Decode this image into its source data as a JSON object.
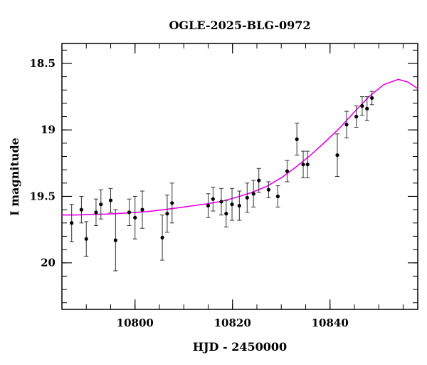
{
  "chart_data": {
    "type": "scatter",
    "title": "OGLE-2025-BLG-0972",
    "xlabel": "HJD - 2450000",
    "ylabel": "I magnitude",
    "xlim": [
      10785,
      10858
    ],
    "ylim": [
      20.35,
      18.35
    ],
    "y_axis_inverted": true,
    "x_ticks": [
      10800,
      10820,
      10840
    ],
    "x_tick_labels": [
      "10800",
      "10820",
      "10840"
    ],
    "y_ticks": [
      18.5,
      19,
      19.5,
      20
    ],
    "y_tick_labels": [
      "18.5",
      "19",
      "19.5",
      "20"
    ],
    "grid": false,
    "point_color": "#000000",
    "model_color": "#e600e6",
    "points": [
      {
        "x": 10787.0,
        "y": 19.7,
        "err": 0.14
      },
      {
        "x": 10789.0,
        "y": 19.6,
        "err": 0.1
      },
      {
        "x": 10790.0,
        "y": 19.82,
        "err": 0.13
      },
      {
        "x": 10792.0,
        "y": 19.62,
        "err": 0.1
      },
      {
        "x": 10793.0,
        "y": 19.56,
        "err": 0.11
      },
      {
        "x": 10795.0,
        "y": 19.53,
        "err": 0.09
      },
      {
        "x": 10796.0,
        "y": 19.83,
        "err": 0.23
      },
      {
        "x": 10798.8,
        "y": 19.62,
        "err": 0.1
      },
      {
        "x": 10800.0,
        "y": 19.66,
        "err": 0.16
      },
      {
        "x": 10801.5,
        "y": 19.6,
        "err": 0.14
      },
      {
        "x": 10805.6,
        "y": 19.81,
        "err": 0.17
      },
      {
        "x": 10806.6,
        "y": 19.63,
        "err": 0.14
      },
      {
        "x": 10807.6,
        "y": 19.55,
        "err": 0.15
      },
      {
        "x": 10815.0,
        "y": 19.57,
        "err": 0.09
      },
      {
        "x": 10816.0,
        "y": 19.52,
        "err": 0.09
      },
      {
        "x": 10817.7,
        "y": 19.54,
        "err": 0.1
      },
      {
        "x": 10818.7,
        "y": 19.63,
        "err": 0.1
      },
      {
        "x": 10819.9,
        "y": 19.56,
        "err": 0.12
      },
      {
        "x": 10821.4,
        "y": 19.57,
        "err": 0.11
      },
      {
        "x": 10823.0,
        "y": 19.51,
        "err": 0.11
      },
      {
        "x": 10824.3,
        "y": 19.48,
        "err": 0.1
      },
      {
        "x": 10825.4,
        "y": 19.38,
        "err": 0.09
      },
      {
        "x": 10827.4,
        "y": 19.45,
        "err": 0.06
      },
      {
        "x": 10829.3,
        "y": 19.5,
        "err": 0.08
      },
      {
        "x": 10831.2,
        "y": 19.31,
        "err": 0.08
      },
      {
        "x": 10833.2,
        "y": 19.07,
        "err": 0.12
      },
      {
        "x": 10834.5,
        "y": 19.26,
        "err": 0.1
      },
      {
        "x": 10835.4,
        "y": 19.26,
        "err": 0.1
      },
      {
        "x": 10841.5,
        "y": 19.19,
        "err": 0.16
      },
      {
        "x": 10843.4,
        "y": 18.96,
        "err": 0.1
      },
      {
        "x": 10845.4,
        "y": 18.9,
        "err": 0.08
      },
      {
        "x": 10846.6,
        "y": 18.82,
        "err": 0.07
      },
      {
        "x": 10847.6,
        "y": 18.84,
        "err": 0.09
      },
      {
        "x": 10848.6,
        "y": 18.76,
        "err": 0.05
      }
    ],
    "model_curve": {
      "x": [
        10785,
        10788,
        10791,
        10794,
        10797,
        10800,
        10803,
        10806,
        10809,
        10812,
        10815,
        10818,
        10821,
        10824,
        10827,
        10830,
        10833,
        10836,
        10839,
        10842,
        10845,
        10848,
        10851,
        10854,
        10856,
        10858
      ],
      "y": [
        19.64,
        19.64,
        19.635,
        19.633,
        19.628,
        19.62,
        19.612,
        19.6,
        19.585,
        19.57,
        19.555,
        19.535,
        19.505,
        19.47,
        19.425,
        19.36,
        19.28,
        19.19,
        19.09,
        18.985,
        18.865,
        18.75,
        18.66,
        18.62,
        18.64,
        18.69
      ]
    }
  }
}
